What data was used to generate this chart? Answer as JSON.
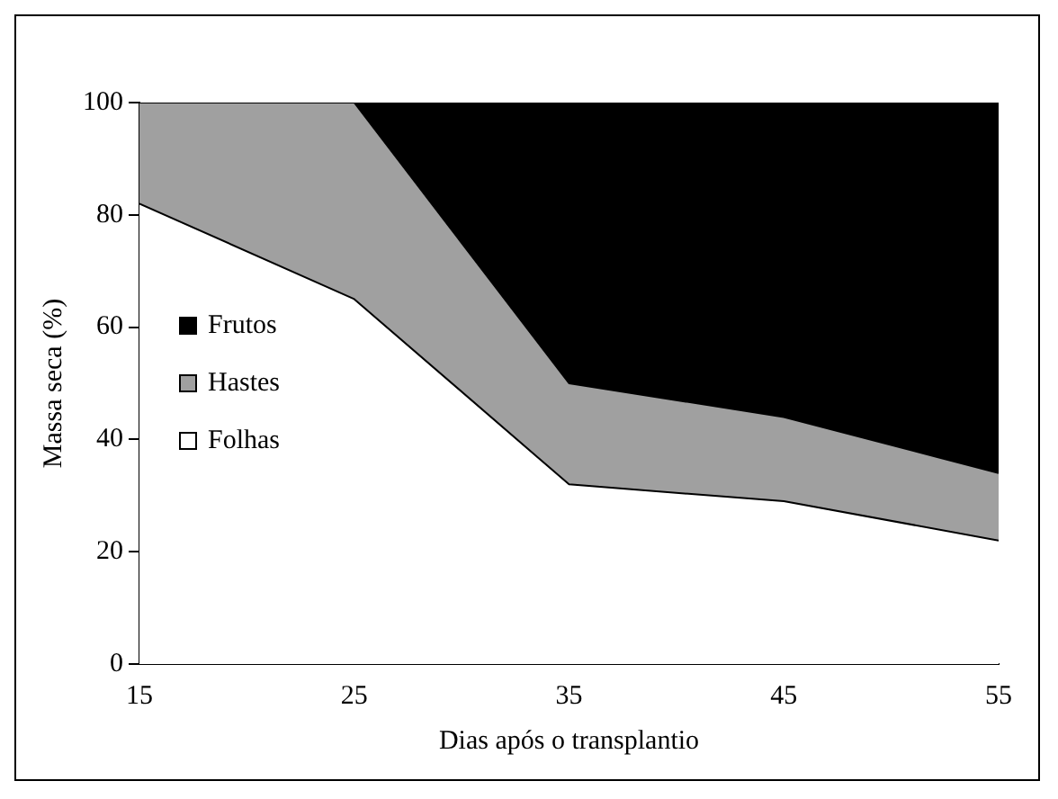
{
  "chart_data": {
    "type": "area",
    "stacked": true,
    "xlabel": "Dias após o transplantio",
    "ylabel": "Massa seca (%)",
    "x": [
      15,
      25,
      35,
      45,
      55
    ],
    "series": [
      {
        "name": "Folhas",
        "color": "#ffffff",
        "values": [
          82,
          65,
          32,
          29,
          22
        ]
      },
      {
        "name": "Hastes",
        "color": "#a0a0a0",
        "values": [
          18,
          35,
          18,
          15,
          12
        ]
      },
      {
        "name": "Frutos",
        "color": "#000000",
        "values": [
          0,
          0,
          50,
          56,
          66
        ]
      }
    ],
    "xlim": [
      15,
      55
    ],
    "xticks": [
      15,
      25,
      35,
      45,
      55
    ],
    "ylim": [
      0,
      100
    ],
    "yticks": [
      0,
      20,
      40,
      60,
      80,
      100
    ],
    "grid": false,
    "legend": "center left"
  }
}
